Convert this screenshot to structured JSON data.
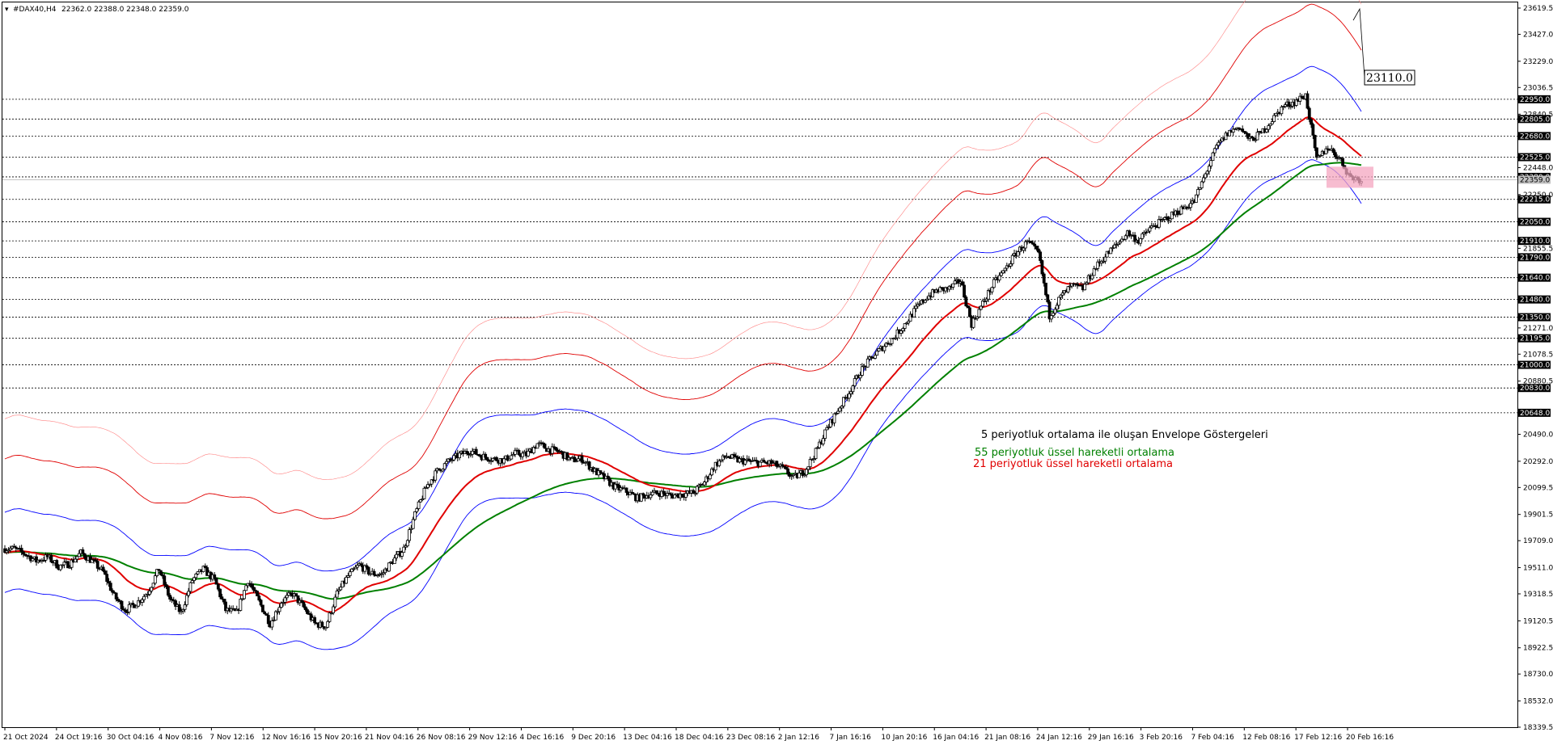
{
  "header": {
    "symbol": "#DAX40,H4",
    "ohlc": "22362.0 22388.0 22348.0 22359.0"
  },
  "callout": {
    "label": "23110.0",
    "value": 23110
  },
  "annotations": {
    "envelope": {
      "text": "5 periyotluk ortalama ile oluşan Envelope Göstergeleri",
      "color": "#000000"
    },
    "ema55": {
      "text": "55 periyotluk üssel hareketli ortalama",
      "color": "#008000"
    },
    "ema21": {
      "text": "21 periyotluk üssel hareketli ortalama",
      "color": "#e00000"
    }
  },
  "chart_data": {
    "type": "candlestick",
    "instrument": "#DAX40",
    "timeframe": "H4",
    "ylim": [
      18339.5,
      23619.5
    ],
    "y_ticks": [
      "23619.5",
      "23427.0",
      "23229.0",
      "23036.5",
      "22840.5",
      "22448.0",
      "22250.0",
      "21855.5",
      "21271.0",
      "21078.5",
      "20880.5",
      "20490.0",
      "20292.0",
      "20099.5",
      "19901.5",
      "19709.0",
      "19511.0",
      "19318.5",
      "19120.5",
      "18922.5",
      "18730.0",
      "18532.0",
      "18339.5"
    ],
    "x_ticks": [
      "21 Oct 2024",
      "24 Oct 19:16",
      "30 Oct 04:16",
      "4 Nov 08:16",
      "7 Nov 12:16",
      "12 Nov 16:16",
      "15 Nov 20:16",
      "21 Nov 04:16",
      "26 Nov 08:16",
      "29 Nov 12:16",
      "4 Dec 16:16",
      "9 Dec 20:16",
      "13 Dec 04:16",
      "18 Dec 04:16",
      "23 Dec 08:16",
      "2 Jan 12:16",
      "7 Jan 16:16",
      "10 Jan 20:16",
      "16 Jan 04:16",
      "21 Jan 08:16",
      "24 Jan 12:16",
      "29 Jan 16:16",
      "3 Feb 20:16",
      "7 Feb 04:16",
      "12 Feb 08:16",
      "17 Feb 12:16",
      "20 Feb 16:16"
    ],
    "horizontal_levels": [
      "22950.0",
      "22805.0",
      "22680.0",
      "22525.0",
      "22380.0",
      "22215.0",
      "22050.0",
      "21910.0",
      "21790.0",
      "21640.0",
      "21480.0",
      "21350.0",
      "21195.0",
      "21000.0",
      "20830.0",
      "20648.0"
    ],
    "current_price": "22359.0",
    "closes": [
      19650,
      19610,
      19560,
      19590,
      19520,
      19540,
      19620,
      19560,
      19480,
      19300,
      19200,
      19250,
      19330,
      19500,
      19280,
      19180,
      19420,
      19500,
      19420,
      19200,
      19180,
      19420,
      19260,
      19100,
      19260,
      19320,
      19220,
      19100,
      19080,
      19320,
      19450,
      19530,
      19470,
      19460,
      19560,
      19650,
      19900,
      20100,
      20220,
      20290,
      20340,
      20370,
      20330,
      20310,
      20300,
      20350,
      20340,
      20420,
      20380,
      20360,
      20300,
      20310,
      20230,
      20170,
      20100,
      20070,
      20020,
      20050,
      20060,
      20040,
      20050,
      20060,
      20140,
      20270,
      20330,
      20300,
      20290,
      20280,
      20280,
      20240,
      20170,
      20220,
      20360,
      20530,
      20670,
      20800,
      20950,
      21050,
      21130,
      21200,
      21300,
      21410,
      21500,
      21550,
      21560,
      21620,
      21300,
      21450,
      21600,
      21700,
      21820,
      21900,
      21820,
      21360,
      21500,
      21580,
      21560,
      21700,
      21800,
      21880,
      21970,
      21910,
      22000,
      22050,
      22100,
      22150,
      22200,
      22400,
      22600,
      22700,
      22750,
      22650,
      22700,
      22800,
      22900,
      22930,
      22980,
      22500,
      22600,
      22520,
      22380,
      22359
    ],
    "series": [
      {
        "name": "21 periyotluk üssel hareketli ortalama",
        "color": "#e00000"
      },
      {
        "name": "55 periyotluk üssel hareketli ortalama",
        "color": "#008000"
      },
      {
        "name": "5 periyotluk ortalama ile oluşan Envelope Göstergeleri",
        "colors": [
          "#0000ff",
          "#e00000",
          "#ff8080"
        ],
        "deviations_pct": [
          1.5,
          3.5,
          5.0
        ]
      }
    ],
    "colors": {
      "candle": "#000000",
      "level_box": "#000000",
      "grid_line": "#000000",
      "zone": "#f4a6c0"
    }
  }
}
